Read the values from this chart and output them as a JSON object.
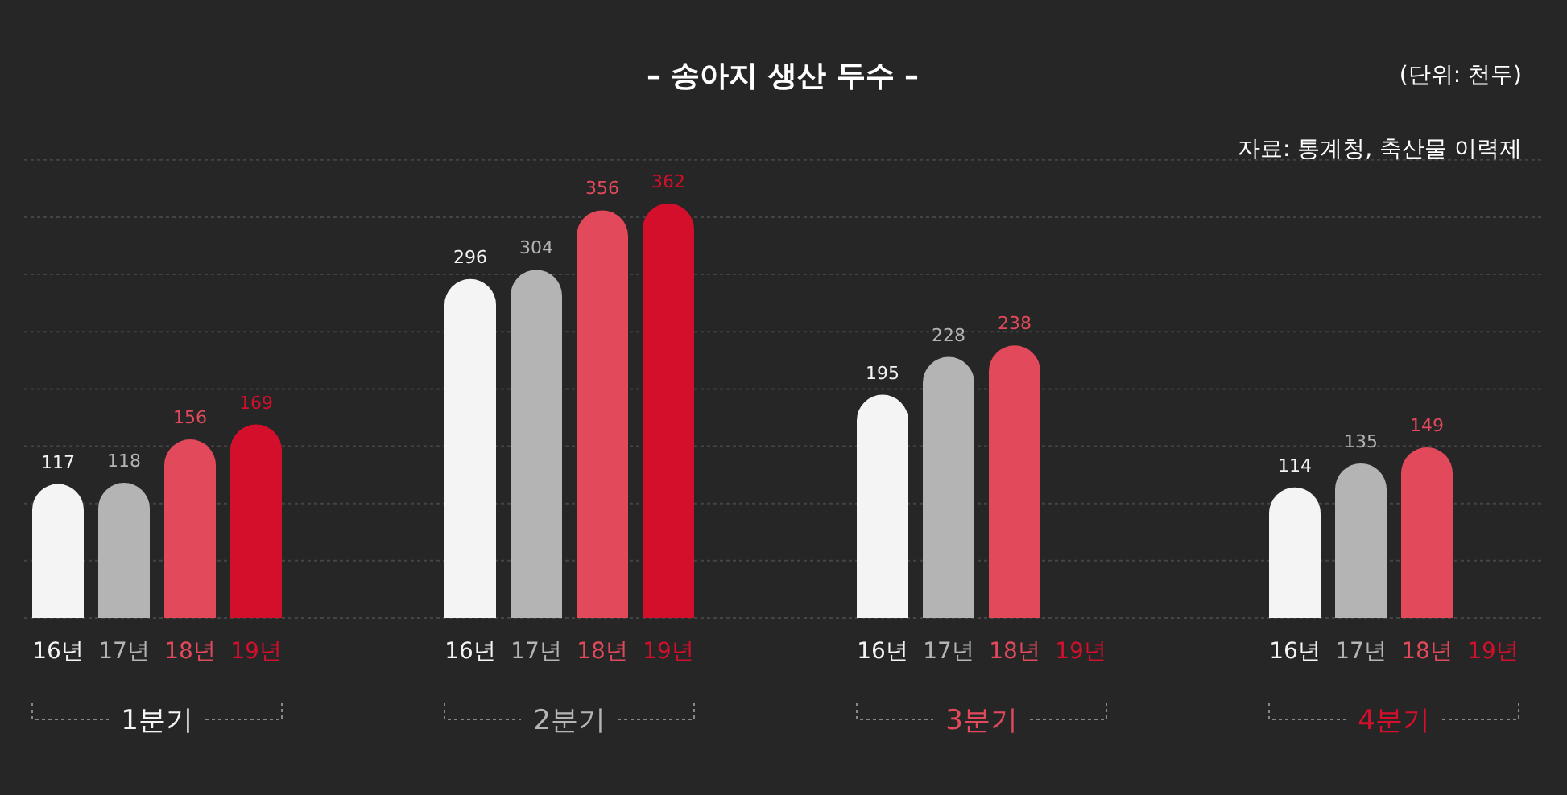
{
  "chart_data": {
    "type": "bar",
    "title": "– 송아지 생산 두수 –",
    "annotations": [
      "(단위: 천두)",
      "자료: 통계청, 축산물 이력제"
    ],
    "categories": [
      "1분기",
      "2분기",
      "3분기",
      "4분기"
    ],
    "series": [
      {
        "name": "16년",
        "color": "#f4f4f4",
        "values": [
          117,
          296,
          195,
          114
        ]
      },
      {
        "name": "17년",
        "color": "#b4b4b4",
        "values": [
          118,
          304,
          228,
          135
        ]
      },
      {
        "name": "18년",
        "color": "#e24a5c",
        "values": [
          156,
          356,
          238,
          149
        ]
      },
      {
        "name": "19년",
        "color": "#d40f2c",
        "values": [
          169,
          362,
          null,
          null
        ]
      }
    ],
    "ylim": [
      0,
      400
    ],
    "yticks": [
      {
        "value": 0,
        "label": null
      },
      {
        "value": 50,
        "label": null
      },
      {
        "value": 100,
        "label": null
      },
      {
        "value": 150,
        "label": null
      },
      {
        "value": 200,
        "label": null
      },
      {
        "value": 250,
        "label": null
      },
      {
        "value": 300,
        "label": null
      },
      {
        "value": 350,
        "label": null
      },
      {
        "value": 400,
        "label": null
      }
    ],
    "grid": "y",
    "tick_labels": "x",
    "data_labels": true,
    "legend": false
  }
}
